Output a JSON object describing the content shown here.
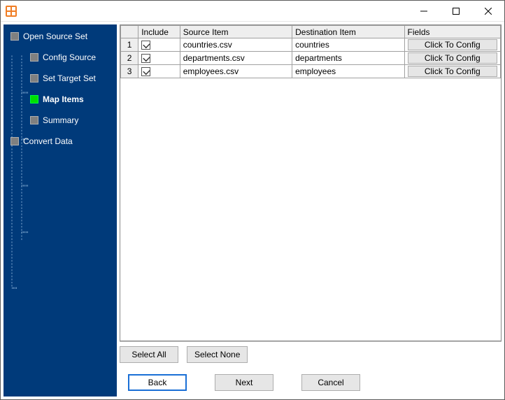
{
  "window": {
    "title": ""
  },
  "colors": {
    "sidebar_bg": "#003a7a",
    "active_node": "#00e000",
    "primary_border": "#1a6fd6",
    "button_bg": "#e6e6e6",
    "grid_border": "#a0a0a0",
    "header_bg": "#eeeeee"
  },
  "sidebar": {
    "nodes": [
      {
        "id": "open-source-set",
        "label": "Open Source Set",
        "level": 0,
        "active": false
      },
      {
        "id": "config-source",
        "label": "Config Source",
        "level": 1,
        "active": false
      },
      {
        "id": "set-target-set",
        "label": "Set Target Set",
        "level": 1,
        "active": false
      },
      {
        "id": "map-items",
        "label": "Map Items",
        "level": 1,
        "active": true
      },
      {
        "id": "summary",
        "label": "Summary",
        "level": 1,
        "active": false
      },
      {
        "id": "convert-data",
        "label": "Convert Data",
        "level": 0,
        "active": false
      }
    ]
  },
  "grid": {
    "columns": {
      "include": "Include",
      "source_item": "Source Item",
      "destination_item": "Destination Item",
      "fields": "Fields"
    },
    "config_label": "Click To Config",
    "rows": [
      {
        "n": "1",
        "include": true,
        "source": "countries.csv",
        "destination": "countries"
      },
      {
        "n": "2",
        "include": true,
        "source": "departments.csv",
        "destination": "departments"
      },
      {
        "n": "3",
        "include": true,
        "source": "employees.csv",
        "destination": "employees"
      }
    ]
  },
  "buttons": {
    "select_all": "Select All",
    "select_none": "Select None",
    "back": "Back",
    "next": "Next",
    "cancel": "Cancel"
  }
}
